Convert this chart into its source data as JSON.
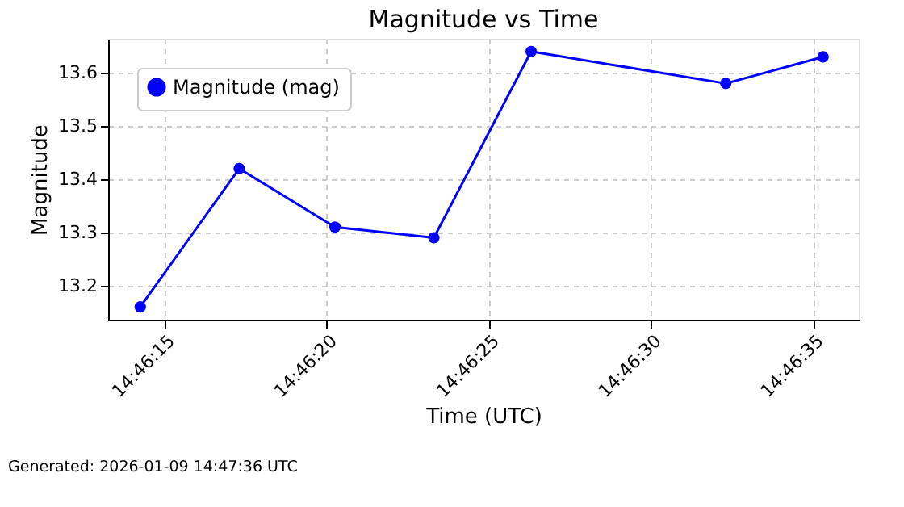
{
  "chart_data": {
    "type": "line",
    "title": "Magnitude vs Time",
    "xlabel": "Time (UTC)",
    "ylabel": "Magnitude",
    "x": [
      14.770625,
      14.771472,
      14.772292,
      14.773139,
      14.773972,
      14.775639,
      14.776472
    ],
    "series": [
      {
        "name": "Magnitude (mag)",
        "color": "#0000ff",
        "values": [
          13.16,
          13.42,
          13.31,
          13.29,
          13.64,
          13.58,
          13.63
        ]
      }
    ],
    "xlim": [
      14.77035,
      14.776778
    ],
    "xticks": [
      {
        "value": 14.770833,
        "label": "14:46:15"
      },
      {
        "value": 14.772222,
        "label": "14:46:20"
      },
      {
        "value": 14.773611,
        "label": "14:46:25"
      },
      {
        "value": 14.775,
        "label": "14:46:30"
      },
      {
        "value": 14.776389,
        "label": "14:46:35"
      }
    ],
    "ylim": [
      13.136,
      13.664
    ],
    "yticks": [
      13.2,
      13.3,
      13.4,
      13.5,
      13.6
    ],
    "grid": true,
    "legend": "top left",
    "marker": "circle",
    "line_style": "solid",
    "annotations": [
      "Generated: 2026-01-09 14:47:36 UTC"
    ]
  }
}
